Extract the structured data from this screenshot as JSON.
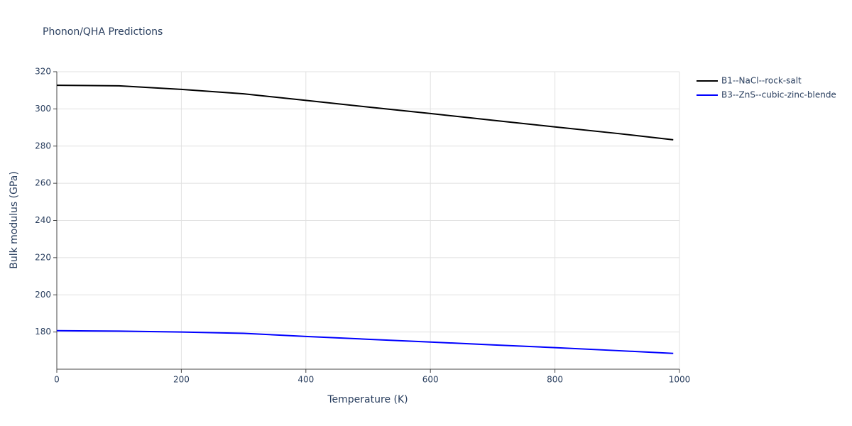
{
  "chart_data": {
    "type": "line",
    "title": "Phonon/QHA Predictions",
    "x_label": "Temperature (K)",
    "y_label": "Bulk modulus (GPa)",
    "x": [
      0,
      100,
      200,
      300,
      400,
      500,
      600,
      700,
      800,
      900,
      990
    ],
    "series": [
      {
        "name": "B1--NaCl--rock-salt",
        "color": "#000000",
        "values": [
          312.7,
          312.4,
          310.5,
          308.1,
          304.6,
          301,
          297.5,
          293.9,
          290.3,
          286.8,
          283.4
        ]
      },
      {
        "name": "B3--ZnS--cubic-zinc-blende",
        "color": "#0000ff",
        "values": [
          180.7,
          180.5,
          180,
          179.3,
          177.6,
          176.1,
          174.6,
          173.1,
          171.6,
          170,
          168.5
        ]
      }
    ],
    "xlim": [
      0,
      1000
    ],
    "xticks": [
      0,
      200,
      400,
      600,
      800,
      1000
    ],
    "ylim": [
      160,
      320
    ],
    "yticks": [
      180,
      200,
      220,
      240,
      260,
      280,
      300,
      320
    ],
    "grid": true,
    "legend": "top-right"
  }
}
